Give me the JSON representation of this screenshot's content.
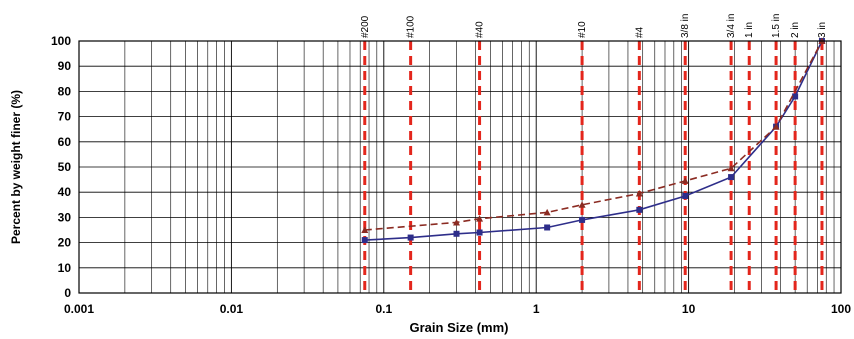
{
  "chart_data": {
    "type": "line",
    "title": "",
    "xlabel": "Grain Size  (mm)",
    "ylabel": "Percent by weight finer (%)",
    "xscale": "log",
    "xlim": [
      0.001,
      100
    ],
    "ylim": [
      0,
      100
    ],
    "x_ticks": [
      {
        "value": 0.001,
        "label": "0.001"
      },
      {
        "value": 0.01,
        "label": "0.01"
      },
      {
        "value": 0.1,
        "label": "0.1"
      },
      {
        "value": 1,
        "label": "1"
      },
      {
        "value": 10,
        "label": "10"
      },
      {
        "value": 100,
        "label": "100"
      }
    ],
    "y_ticks": [
      0,
      10,
      20,
      30,
      40,
      50,
      60,
      70,
      80,
      90,
      100
    ],
    "grid": true,
    "sieves": [
      {
        "label": "#200",
        "size": 0.075
      },
      {
        "label": "#100",
        "size": 0.15
      },
      {
        "label": "#40",
        "size": 0.425
      },
      {
        "label": "#10",
        "size": 2.0
      },
      {
        "label": "#4",
        "size": 4.75
      },
      {
        "label": "3/8 in",
        "size": 9.5
      },
      {
        "label": "3/4 in",
        "size": 19
      },
      {
        "label": "1 in",
        "size": 25
      },
      {
        "label": "1.5 in",
        "size": 37.5
      },
      {
        "label": "2 in",
        "size": 50
      },
      {
        "label": "3 in",
        "size": 75
      }
    ],
    "series": [
      {
        "color": "#2e2e8a",
        "style": "solid",
        "marker": "square",
        "x": [
          0.075,
          0.15,
          0.3,
          0.425,
          1.18,
          2.0,
          4.75,
          9.5,
          19,
          37.5,
          50,
          75
        ],
        "y": [
          21,
          22,
          23.5,
          24,
          26,
          29,
          33,
          38.5,
          46,
          66,
          78,
          100
        ]
      },
      {
        "color": "#8b2b22",
        "style": "dashed",
        "marker": "triangle",
        "x": [
          0.075,
          0.3,
          0.425,
          1.18,
          2.0,
          4.75,
          9.5,
          19,
          37.5,
          75
        ],
        "y": [
          25,
          28,
          29.5,
          32,
          35,
          39.5,
          44.5,
          49.5,
          66,
          100
        ]
      }
    ]
  }
}
